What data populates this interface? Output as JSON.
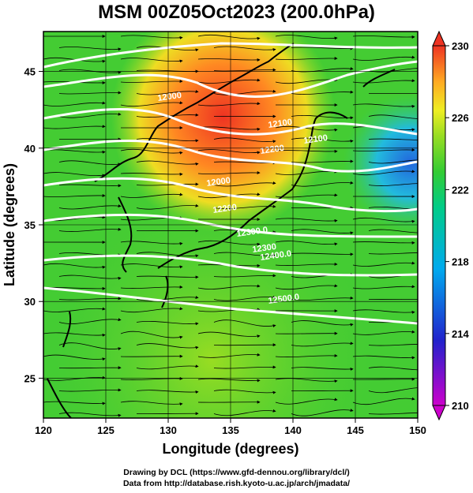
{
  "title": "MSM 00Z05Oct2023 (200.0hPa)",
  "x_axis": {
    "label": "Longitude (degrees)",
    "range": [
      120,
      150
    ],
    "ticks": [
      "120",
      "125",
      "130",
      "135",
      "140",
      "145",
      "150"
    ]
  },
  "y_axis": {
    "label": "Latitude  (degrees)",
    "range": [
      22.4,
      47.6
    ],
    "ticks": [
      "25",
      "30",
      "35",
      "40",
      "45"
    ]
  },
  "colorbar": {
    "ticks": [
      "210",
      "214",
      "218",
      "222",
      "226",
      "230"
    ],
    "range": [
      210,
      230
    ],
    "colors": [
      "#cc00cc",
      "#2222cc",
      "#00aaee",
      "#00cc88",
      "#33cc33",
      "#88dd22",
      "#eeee22",
      "#ffaa22",
      "#ee3322"
    ]
  },
  "contour_labels": [
    "12000",
    "12000",
    "12100",
    "12200",
    "12300",
    "12300.0",
    "12400.0",
    "12500.0",
    "12200",
    "12100"
  ],
  "credits": {
    "line1": "Drawing by DCL (https://www.gfd-dennou.org/library/dcl/)",
    "line2": "Data from http://database.rish.kyoto-u.ac.jp/arch/jmadata/"
  }
}
